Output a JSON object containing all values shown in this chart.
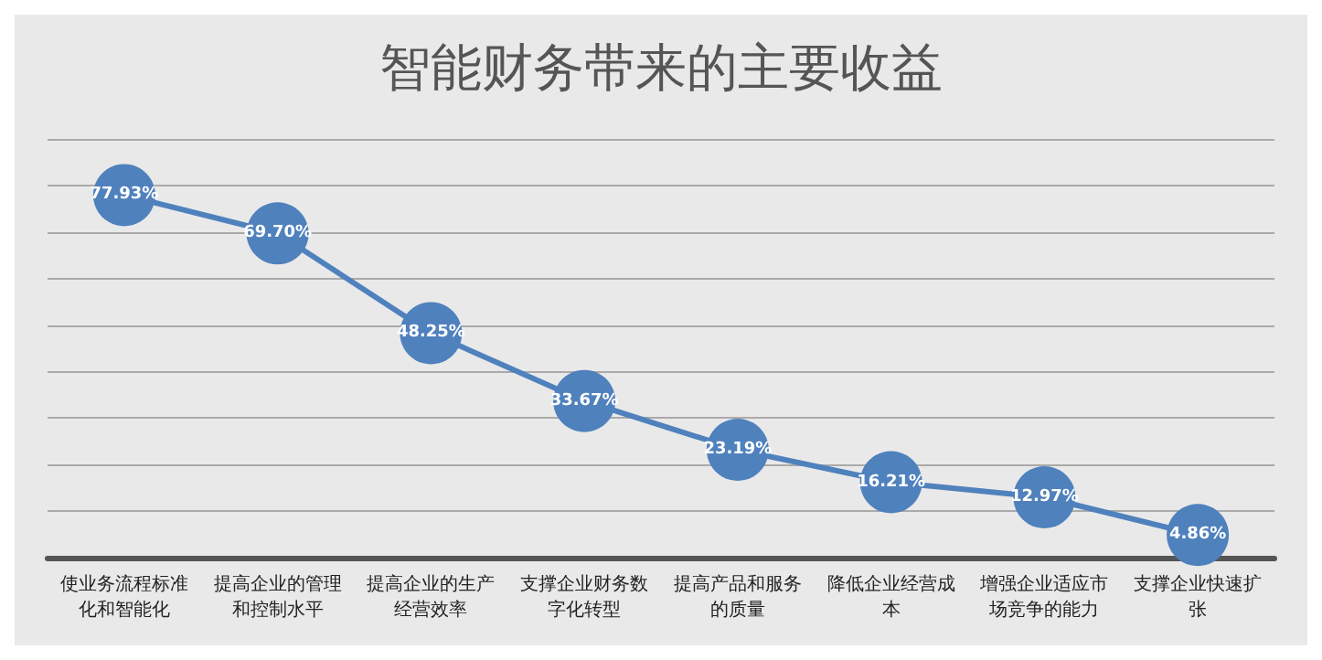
{
  "chart_data": {
    "type": "line",
    "title": "智能财务带来的主要收益",
    "categories": [
      "使业务流程标准化和智能化",
      "提高企业的管理和控制水平",
      "提高企业的生产经营效率",
      "支撑企业财务数字化转型",
      "提高产品和服务的质量",
      "降低企业经营成本",
      "增强企业适应市场竞争的能力",
      "支撑企业快速扩张"
    ],
    "series": [
      {
        "color": "#4f81bd",
        "values": [
          77.93,
          69.7,
          48.25,
          33.67,
          23.19,
          16.21,
          12.97,
          4.86
        ],
        "value_labels": [
          "77.93%",
          "69.70%",
          "48.25%",
          "33.67%",
          "23.19%",
          "16.21%",
          "12.97%",
          "4.86%"
        ]
      }
    ],
    "ylim": [
      0,
      90
    ],
    "yticks": [
      {
        "value": 0,
        "label": null
      },
      {
        "value": 10,
        "label": null
      },
      {
        "value": 20,
        "label": null
      },
      {
        "value": 30,
        "label": null
      },
      {
        "value": 40,
        "label": null
      },
      {
        "value": 50,
        "label": null
      },
      {
        "value": 60,
        "label": null
      },
      {
        "value": 70,
        "label": null
      },
      {
        "value": 80,
        "label": null
      },
      {
        "value": 90,
        "label": null
      }
    ],
    "tick_labels": "x",
    "grid": "y",
    "marker": "circle",
    "line_style": "solid"
  }
}
